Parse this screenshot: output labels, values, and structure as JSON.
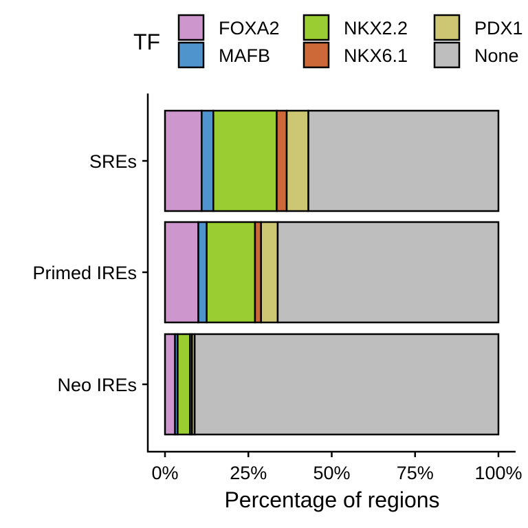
{
  "chart_data": {
    "type": "bar",
    "orientation": "horizontal",
    "stacked": true,
    "xlabel": "Percentage of regions",
    "ylabel": "",
    "xlim": [
      0,
      100
    ],
    "x_ticks": [
      "0%",
      "25%",
      "50%",
      "75%",
      "100%"
    ],
    "categories": [
      "SREs",
      "Primed IREs",
      "Neo IREs"
    ],
    "legend": {
      "title": "TF",
      "placement": "top"
    },
    "series": [
      {
        "name": "FOXA2",
        "color": "#CD96CD",
        "values": [
          11.0,
          10.0,
          3.0
        ]
      },
      {
        "name": "MAFB",
        "color": "#4F94CD",
        "values": [
          3.5,
          2.5,
          0.8
        ]
      },
      {
        "name": "NKX2.2",
        "color": "#9ACD32",
        "values": [
          19.0,
          14.5,
          3.7
        ]
      },
      {
        "name": "NKX6.1",
        "color": "#CD6839",
        "values": [
          3.0,
          1.8,
          0.6
        ]
      },
      {
        "name": "PDX1",
        "color": "#CDC673",
        "values": [
          6.5,
          5.0,
          0.8
        ]
      },
      {
        "name": "None",
        "color": "#BEBEBE",
        "values": [
          57.0,
          66.2,
          91.1
        ]
      }
    ]
  }
}
